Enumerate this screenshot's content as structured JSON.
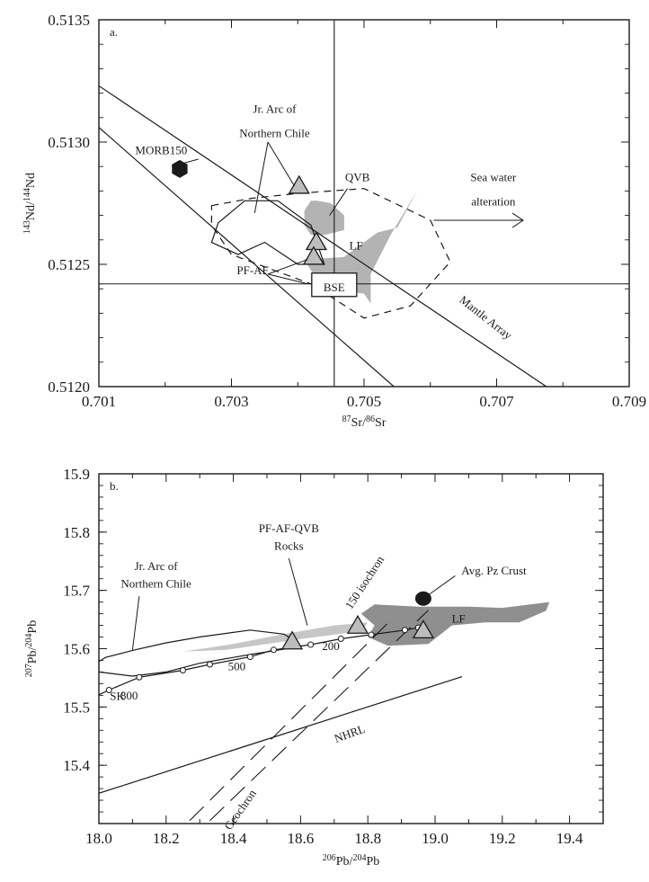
{
  "chart_data": [
    {
      "type": "scatter",
      "panel_label": "a.",
      "xlabel": {
        "sup1": "87",
        "base1": "Sr/",
        "sup2": "86",
        "base2": "Sr"
      },
      "ylabel": {
        "sup1": "143",
        "base1": "Nd/",
        "sup2": "144",
        "base2": "Nd"
      },
      "xlim": [
        0.701,
        0.709
      ],
      "ylim": [
        0.512,
        0.5135
      ],
      "x_ticks": [
        0.701,
        0.703,
        0.705,
        0.707,
        0.709
      ],
      "x_tick_labels": [
        "0.701",
        "0.703",
        "0.705",
        "0.707",
        "0.709"
      ],
      "y_ticks": [
        0.512,
        0.5125,
        0.513,
        0.5135
      ],
      "y_tick_labels": [
        "0.5120",
        "0.5125",
        "0.5130",
        "0.5135"
      ],
      "bse": {
        "x": 0.70455,
        "y": 0.51242,
        "label": "BSE"
      },
      "mantle_array": {
        "label": "Mantle Array",
        "upper": [
          [
            0.701,
            0.51323
          ],
          [
            0.70775,
            0.512
          ]
        ],
        "lower": [
          [
            0.701,
            0.51306
          ],
          [
            0.70545,
            0.512
          ]
        ]
      },
      "points": [
        {
          "name": "MORB150",
          "x": 0.70222,
          "y": 0.51289,
          "marker": "hexagon"
        },
        {
          "name": "triangle-1",
          "x": 0.70402,
          "y": 0.51282,
          "marker": "triangle"
        },
        {
          "name": "triangle-2",
          "x": 0.70428,
          "y": 0.51259,
          "marker": "triangle"
        },
        {
          "name": "triangle-3",
          "x": 0.70424,
          "y": 0.51253,
          "marker": "triangle"
        }
      ],
      "regions": [
        {
          "name": "QVB",
          "style": "filled",
          "points": [
            [
              0.7042,
              0.51276
            ],
            [
              0.7041,
              0.51272
            ],
            [
              0.7041,
              0.51266
            ],
            [
              0.7042,
              0.51262
            ],
            [
              0.7044,
              0.51262
            ],
            [
              0.7047,
              0.51264
            ],
            [
              0.7047,
              0.5127
            ],
            [
              0.7045,
              0.51275
            ],
            [
              0.7043,
              0.51276
            ]
          ]
        },
        {
          "name": "LF",
          "style": "filled",
          "points": [
            [
              0.7041,
              0.51252
            ],
            [
              0.7047,
              0.51253
            ],
            [
              0.7052,
              0.51263
            ],
            [
              0.7055,
              0.51265
            ],
            [
              0.7058,
              0.5128
            ],
            [
              0.7054,
              0.51262
            ],
            [
              0.7051,
              0.51246
            ],
            [
              0.7051,
              0.51234
            ],
            [
              0.705,
              0.51238
            ],
            [
              0.7047,
              0.51239
            ],
            [
              0.7043,
              0.51243
            ],
            [
              0.7041,
              0.51252
            ]
          ]
        },
        {
          "name": "Jr. Arc of Northern Chile",
          "style": "outline",
          "points": [
            [
              0.7032,
              0.51276
            ],
            [
              0.7037,
              0.51276
            ],
            [
              0.7042,
              0.51266
            ],
            [
              0.7044,
              0.5125
            ],
            [
              0.704,
              0.5125
            ],
            [
              0.7035,
              0.51259
            ],
            [
              0.7031,
              0.51254
            ],
            [
              0.7027,
              0.51259
            ],
            [
              0.7028,
              0.51267
            ],
            [
              0.7032,
              0.51276
            ]
          ]
        },
        {
          "name": "Sea water alteration",
          "style": "dashed",
          "points": [
            [
              0.7027,
              0.51274
            ],
            [
              0.7033,
              0.51277
            ],
            [
              0.704,
              0.51279
            ],
            [
              0.705,
              0.51281
            ],
            [
              0.706,
              0.51268
            ],
            [
              0.7063,
              0.51251
            ],
            [
              0.7057,
              0.51233
            ],
            [
              0.705,
              0.51228
            ],
            [
              0.7042,
              0.51242
            ],
            [
              0.703,
              0.51254
            ],
            [
              0.7027,
              0.51266
            ],
            [
              0.7027,
              0.51274
            ]
          ]
        }
      ],
      "annotations": [
        {
          "text": "Jr. Arc of",
          "x": 0.70365,
          "y": 0.51312
        },
        {
          "text": "Northern Chile",
          "x": 0.70365,
          "y": 0.51302
        },
        {
          "text": "QVB",
          "x": 0.7049,
          "y": 0.51284
        },
        {
          "text": "Sea water",
          "x": 0.70695,
          "y": 0.51284
        },
        {
          "text": "alteration",
          "x": 0.70695,
          "y": 0.51274
        },
        {
          "text": "LF",
          "x": 0.70488,
          "y": 0.51256
        },
        {
          "text": "PF-AF",
          "x": 0.70332,
          "y": 0.51246
        },
        {
          "text": "MORB150",
          "x": 0.70194,
          "y": 0.51295
        }
      ],
      "arrow_label": "Sea water alteration"
    },
    {
      "type": "scatter",
      "panel_label": "b.",
      "xlabel": {
        "sup1": "206",
        "base1": "Pb/",
        "sup2": "204",
        "base2": "Pb"
      },
      "ylabel": {
        "sup1": "207",
        "base1": "Pb/",
        "sup2": "204",
        "base2": "Pb"
      },
      "xlim": [
        18.0,
        19.5
      ],
      "ylim": [
        15.3,
        15.9
      ],
      "x_ticks": [
        18.0,
        18.2,
        18.4,
        18.6,
        18.8,
        19.0,
        19.2,
        19.4
      ],
      "x_tick_labels": [
        "18.0",
        "18.2",
        "18.4",
        "18.6",
        "18.8",
        "19.0",
        "19.2",
        "19.4"
      ],
      "y_ticks": [
        15.4,
        15.5,
        15.6,
        15.7,
        15.8,
        15.9
      ],
      "y_tick_labels": [
        "15.4",
        "15.5",
        "15.6",
        "15.7",
        "15.8",
        "15.9"
      ],
      "sk_curve": {
        "label": "SK",
        "points": [
          [
            18.03,
            15.529
          ],
          [
            18.12,
            15.551
          ],
          [
            18.25,
            15.563
          ],
          [
            18.33,
            15.573
          ],
          [
            18.45,
            15.586
          ],
          [
            18.52,
            15.598
          ],
          [
            18.63,
            15.607
          ],
          [
            18.72,
            15.617
          ],
          [
            18.81,
            15.624
          ],
          [
            18.91,
            15.632
          ],
          [
            18.95,
            15.636
          ]
        ],
        "line_start": [
          18.0,
          15.521
        ],
        "age_labels": [
          {
            "text": "800",
            "x": 18.09,
            "y": 15.513
          },
          {
            "text": "500",
            "x": 18.41,
            "y": 15.563
          },
          {
            "text": "200",
            "x": 18.69,
            "y": 15.598
          }
        ]
      },
      "nhrl": {
        "label": "NHRL",
        "points": [
          [
            18.0,
            15.352
          ],
          [
            19.08,
            15.552
          ]
        ]
      },
      "geochron": {
        "label": "Geochron",
        "points": [
          [
            18.27,
            15.305
          ],
          [
            18.87,
            15.65
          ]
        ]
      },
      "isochron_150": {
        "label": "150 isochron",
        "points": [
          [
            18.33,
            15.305
          ],
          [
            18.98,
            15.666
          ]
        ]
      },
      "points": [
        {
          "name": "Avg. Pz Crust",
          "x": 18.965,
          "y": 15.686,
          "marker": "ellipse"
        },
        {
          "name": "triangle-1",
          "x": 18.575,
          "y": 15.612,
          "marker": "triangle"
        },
        {
          "name": "triangle-2",
          "x": 18.77,
          "y": 15.639,
          "marker": "triangle"
        },
        {
          "name": "triangle-3",
          "x": 18.965,
          "y": 15.631,
          "marker": "triangle"
        }
      ],
      "regions": [
        {
          "name": "PF-AF-QVB Rocks",
          "style": "filled-light",
          "points": [
            [
              18.25,
              15.595
            ],
            [
              18.4,
              15.608
            ],
            [
              18.55,
              15.625
            ],
            [
              18.7,
              15.64
            ],
            [
              18.8,
              15.645
            ],
            [
              18.78,
              15.63
            ],
            [
              18.62,
              15.618
            ],
            [
              18.5,
              15.608
            ],
            [
              18.38,
              15.598
            ],
            [
              18.25,
              15.595
            ]
          ]
        },
        {
          "name": "LF",
          "style": "filled-dark",
          "points": [
            [
              18.82,
              15.676
            ],
            [
              18.95,
              15.672
            ],
            [
              19.1,
              15.672
            ],
            [
              19.2,
              15.67
            ],
            [
              19.34,
              15.68
            ],
            [
              19.33,
              15.665
            ],
            [
              19.25,
              15.645
            ],
            [
              19.15,
              15.645
            ],
            [
              19.05,
              15.64
            ],
            [
              18.98,
              15.608
            ],
            [
              18.86,
              15.605
            ],
            [
              18.8,
              15.62
            ],
            [
              18.82,
              15.64
            ],
            [
              18.78,
              15.66
            ],
            [
              18.82,
              15.676
            ]
          ]
        },
        {
          "name": "Jr. Arc of Northern Chile",
          "style": "outline",
          "points": [
            [
              18.0,
              15.578
            ],
            [
              18.02,
              15.585
            ],
            [
              18.1,
              15.597
            ],
            [
              18.2,
              15.61
            ],
            [
              18.3,
              15.62
            ],
            [
              18.45,
              15.632
            ],
            [
              18.55,
              15.625
            ],
            [
              18.58,
              15.615
            ],
            [
              18.56,
              15.6
            ],
            [
              18.45,
              15.59
            ],
            [
              18.3,
              15.575
            ],
            [
              18.2,
              15.56
            ],
            [
              18.1,
              15.553
            ],
            [
              18.0,
              15.56
            ],
            [
              18.0,
              15.578
            ]
          ]
        }
      ],
      "annotations": [
        {
          "text": "PF-AF-QVB",
          "x": 18.565,
          "y": 15.8
        },
        {
          "text": "Rocks",
          "x": 18.565,
          "y": 15.77
        },
        {
          "text": "Jr. Arc of",
          "x": 18.17,
          "y": 15.735
        },
        {
          "text": "Northern Chile",
          "x": 18.17,
          "y": 15.705
        },
        {
          "text": "Avg. Pz Crust",
          "x": 19.175,
          "y": 15.727
        },
        {
          "text": "LF",
          "x": 19.07,
          "y": 15.645
        },
        {
          "text": "NHRL",
          "x": 18.75,
          "y": 15.448
        },
        {
          "text": "Geochron",
          "x": 18.43,
          "y": 15.32
        },
        {
          "text": "150 isochron",
          "x": 18.8,
          "y": 15.71
        }
      ]
    }
  ]
}
